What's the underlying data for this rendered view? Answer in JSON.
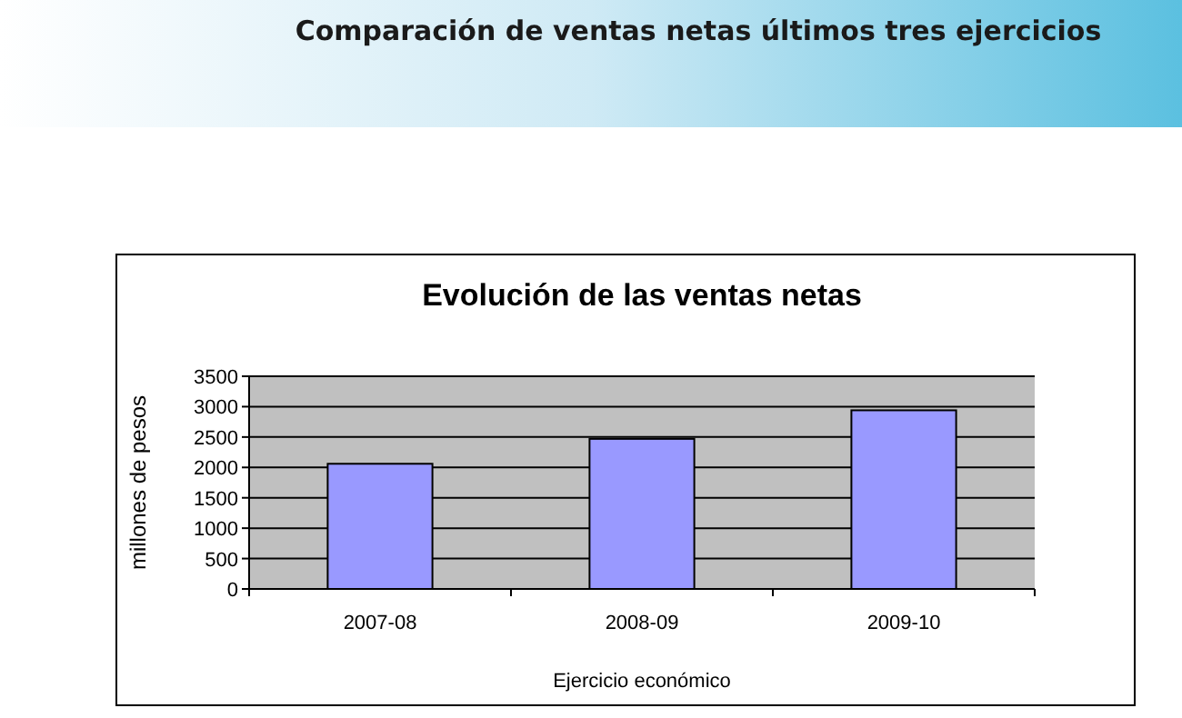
{
  "chart_data": {
    "type": "bar",
    "title": "Evolución de las ventas netas",
    "annotations": [
      "Comparación de ventas netas últimos tres ejercicios"
    ],
    "xlabel": "Ejercicio económico",
    "ylabel": "millones de pesos",
    "categories": [
      "2007-08",
      "2008-09",
      "2009-10"
    ],
    "values": [
      2060,
      2470,
      2940
    ],
    "color": "#9999ff",
    "ylim": [
      0,
      3500
    ],
    "yticks": [
      0,
      500,
      1000,
      1500,
      2000,
      2500,
      3000,
      3500
    ],
    "grid": "y"
  }
}
